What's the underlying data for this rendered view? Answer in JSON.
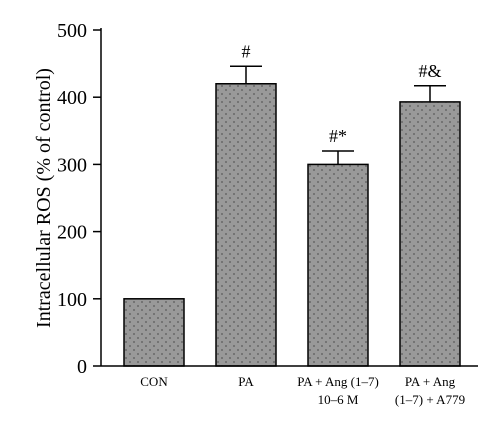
{
  "chart_data": {
    "type": "bar",
    "ylabel": "Intracellular ROS (% of control)",
    "xlabel": "",
    "ylim": [
      0,
      500
    ],
    "yticks": [
      0,
      100,
      200,
      300,
      400,
      500
    ],
    "grid": false,
    "categories": [
      [
        "CON"
      ],
      [
        "PA"
      ],
      [
        "PA + Ang (1–7)",
        "10–6 M"
      ],
      [
        "PA + Ang",
        "(1–7) + A779"
      ]
    ],
    "values": [
      100,
      420,
      300,
      393
    ],
    "errors": [
      0,
      26,
      20,
      24
    ],
    "annotations": [
      "",
      "#",
      "#*",
      "#&"
    ],
    "colors": {
      "bar_fill": "#999999",
      "dots": "#5a5a5a"
    }
  }
}
